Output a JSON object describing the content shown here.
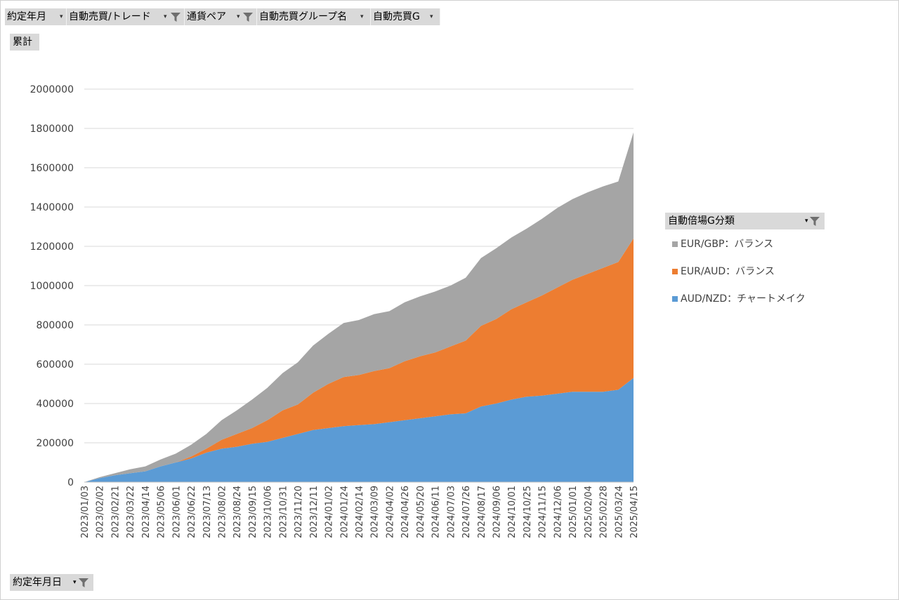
{
  "fields": {
    "f1": "約定年月",
    "f2": "自動売買/トレード",
    "f3": "通貨ペア",
    "f4": "自動売買グループ名",
    "f5": "自動売買G",
    "dropdown_glyph": "▾",
    "sum_label": "累計",
    "x_field": "約定年月日",
    "legend_field": "自動倍場G分類"
  },
  "chart_data": {
    "type": "area",
    "stacked": true,
    "grid": true,
    "legend_position": "right",
    "ylim": [
      0,
      2000000
    ],
    "y_ticks": [
      0,
      200000,
      400000,
      600000,
      800000,
      1000000,
      1200000,
      1400000,
      1600000,
      1800000,
      2000000
    ],
    "x": [
      "2023/01/03",
      "2023/02/02",
      "2023/02/21",
      "2023/03/22",
      "2023/04/14",
      "2023/05/06",
      "2023/06/01",
      "2023/06/22",
      "2023/07/13",
      "2023/08/02",
      "2023/08/24",
      "2023/09/15",
      "2023/10/06",
      "2023/10/31",
      "2023/11/20",
      "2023/12/11",
      "2024/01/02",
      "2024/01/24",
      "2024/02/14",
      "2024/03/09",
      "2024/04/02",
      "2024/04/26",
      "2024/05/20",
      "2024/06/11",
      "2024/07/03",
      "2024/07/26",
      "2024/08/17",
      "2024/09/06",
      "2024/10/01",
      "2024/10/25",
      "2024/11/15",
      "2024/12/06",
      "2025/01/01",
      "2025/02/04",
      "2025/02/28",
      "2025/03/24",
      "2025/04/15"
    ],
    "series": [
      {
        "name": "AUD/NZD：チャートメイク",
        "color": "#5b9bd5",
        "values": [
          0,
          20000,
          35000,
          45000,
          55000,
          80000,
          100000,
          120000,
          150000,
          170000,
          180000,
          195000,
          205000,
          225000,
          245000,
          265000,
          275000,
          285000,
          290000,
          295000,
          305000,
          315000,
          325000,
          335000,
          345000,
          350000,
          385000,
          400000,
          420000,
          435000,
          440000,
          450000,
          460000,
          460000,
          460000,
          470000,
          530000
        ]
      },
      {
        "name": "EUR/AUD：バランス",
        "color": "#ed7d31",
        "values": [
          0,
          0,
          0,
          0,
          0,
          0,
          0,
          10000,
          20000,
          45000,
          65000,
          80000,
          110000,
          140000,
          150000,
          190000,
          225000,
          250000,
          255000,
          270000,
          275000,
          300000,
          315000,
          325000,
          345000,
          370000,
          410000,
          430000,
          460000,
          480000,
          510000,
          540000,
          570000,
          600000,
          630000,
          650000,
          710000
        ]
      },
      {
        "name": "EUR/GBP：バランス",
        "color": "#a5a5a5",
        "values": [
          0,
          5000,
          10000,
          20000,
          25000,
          35000,
          45000,
          60000,
          75000,
          100000,
          120000,
          145000,
          165000,
          190000,
          215000,
          240000,
          255000,
          275000,
          280000,
          290000,
          290000,
          300000,
          305000,
          310000,
          310000,
          320000,
          345000,
          360000,
          365000,
          375000,
          390000,
          405000,
          410000,
          415000,
          415000,
          410000,
          540000
        ]
      }
    ]
  }
}
